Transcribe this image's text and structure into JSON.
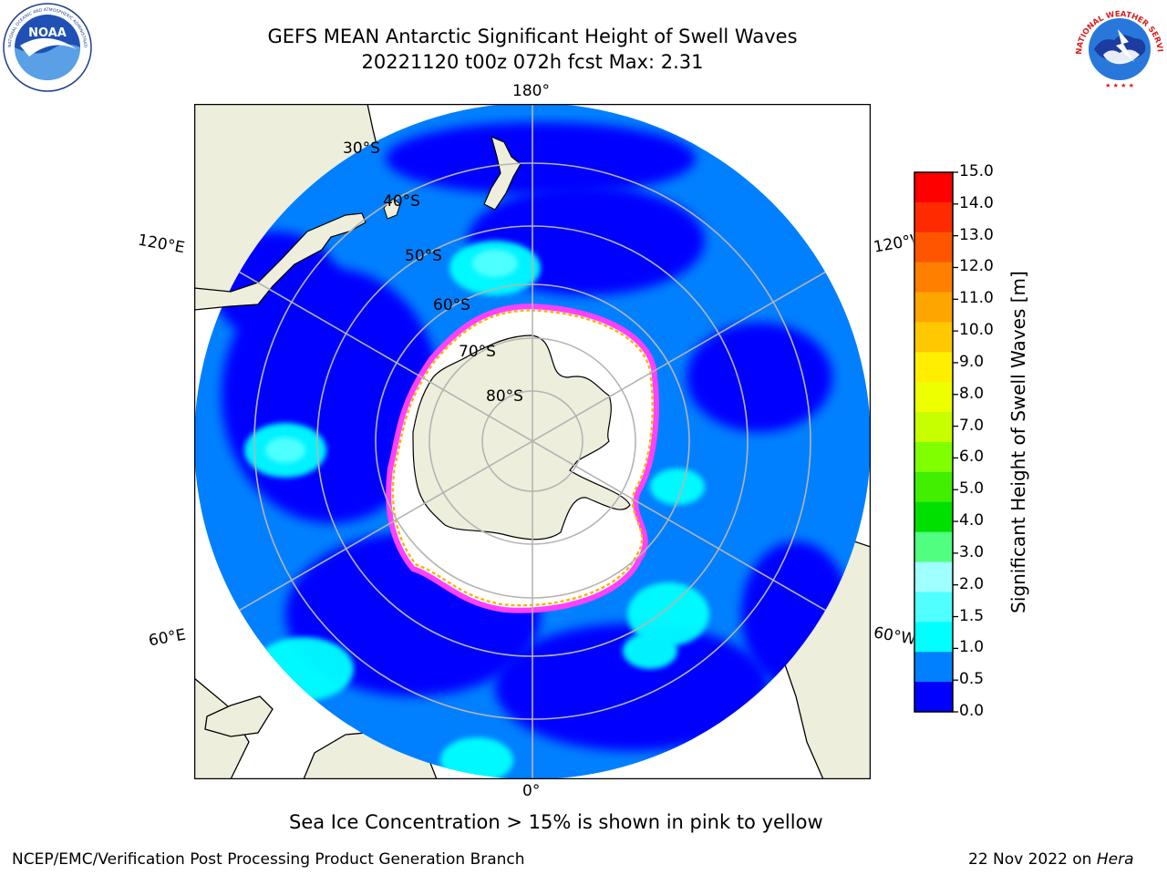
{
  "header": {
    "title_line1": "GEFS MEAN Antarctic Significant Height of Swell Waves",
    "title_line2": "20221120 t00z 072h fcst   Max: 2.31"
  },
  "logos": {
    "noaa_text": "NOAA",
    "noaa_ring_text": "NATIONAL OCEANIC AND ATMOSPHERIC ADMINISTRATION · U.S. DEPARTMENT OF COMMERCE",
    "nws_ring_text": "NATIONAL WEATHER SERVICE"
  },
  "map": {
    "projection": "south-polar stereographic",
    "longitude_labels": {
      "top": "180°",
      "bottom": "0°",
      "left_upper": "120°E",
      "left_lower": "60°E",
      "right_upper": "120°W",
      "right_lower": "60°W"
    },
    "latitude_labels": [
      "30°S",
      "40°S",
      "50°S",
      "60°S",
      "70°S",
      "80°S"
    ],
    "colors": {
      "land": "#eeeedc",
      "coast": "#000000",
      "grid": "#b4b4b4",
      "no_data": "#ffffff"
    }
  },
  "colorbar": {
    "label": "Significant Height of Swell Waves [m]",
    "ticks": [
      "15.0",
      "14.0",
      "13.0",
      "12.0",
      "11.0",
      "10.0",
      "9.0",
      "8.0",
      "7.0",
      "6.0",
      "5.0",
      "4.0",
      "3.0",
      "2.0",
      "1.5",
      "1.0",
      "0.5",
      "0.0"
    ],
    "colors_top_to_bottom": [
      "#ff0000",
      "#ff2a00",
      "#ff5500",
      "#ff7f00",
      "#ffa500",
      "#ffc800",
      "#ffee00",
      "#eeff00",
      "#c8ff00",
      "#80ff00",
      "#40f000",
      "#00e000",
      "#50ff80",
      "#a0ffff",
      "#50ffff",
      "#00ffff",
      "#0080ff",
      "#0000ff"
    ]
  },
  "annotations": {
    "sea_ice_note": "Sea Ice Concentration > 15% is shown in pink to yellow"
  },
  "footer": {
    "left": "NCEP/EMC/Verification Post Processing Product Generation Branch",
    "right_date": "22 Nov 2022 on ",
    "right_host": "Hera"
  }
}
